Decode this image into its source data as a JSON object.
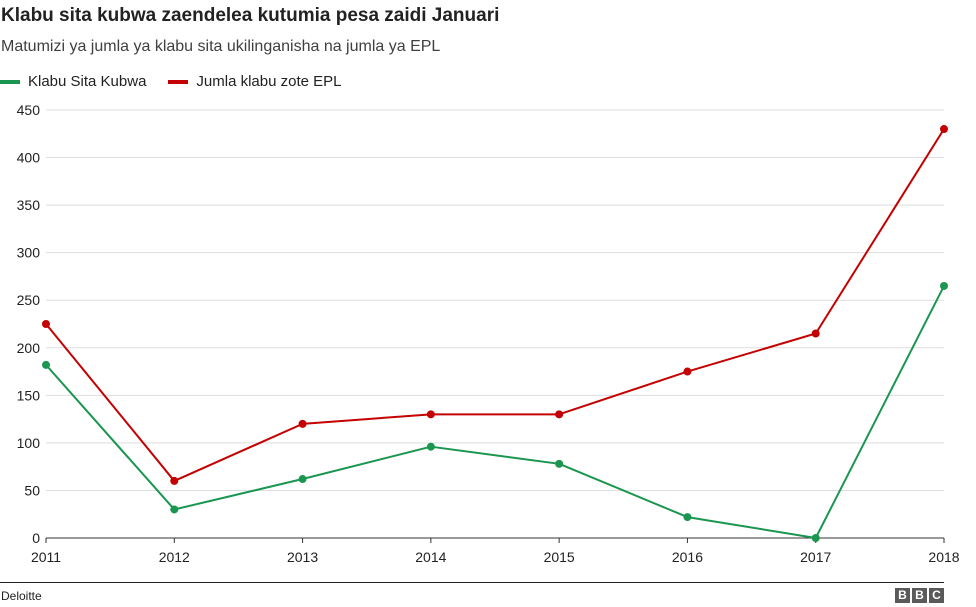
{
  "chart_data": {
    "type": "line",
    "title": "Klabu sita kubwa zaendelea kutumia pesa zaidi Januari",
    "subtitle": "Matumizi ya jumla ya klabu sita ukilinganisha na jumla ya EPL",
    "x": [
      "2011",
      "2012",
      "2013",
      "2014",
      "2015",
      "2016",
      "2017",
      "2018"
    ],
    "ylim": [
      0,
      450
    ],
    "yticks": [
      "0",
      "50",
      "100",
      "150",
      "200",
      "250",
      "300",
      "350",
      "400",
      "450"
    ],
    "grid": true,
    "legend_position": "top-left",
    "series": [
      {
        "name": "Klabu Sita Kubwa",
        "color": "#1a9650",
        "values": [
          182,
          30,
          62,
          96,
          78,
          22,
          0,
          265
        ]
      },
      {
        "name": "Jumla klabu zote EPL",
        "color": "#c40000",
        "values": [
          225,
          60,
          120,
          130,
          130,
          175,
          215,
          430
        ]
      }
    ],
    "source": "Deloitte"
  },
  "branding": {
    "logo_letters": [
      "B",
      "B",
      "C"
    ]
  }
}
